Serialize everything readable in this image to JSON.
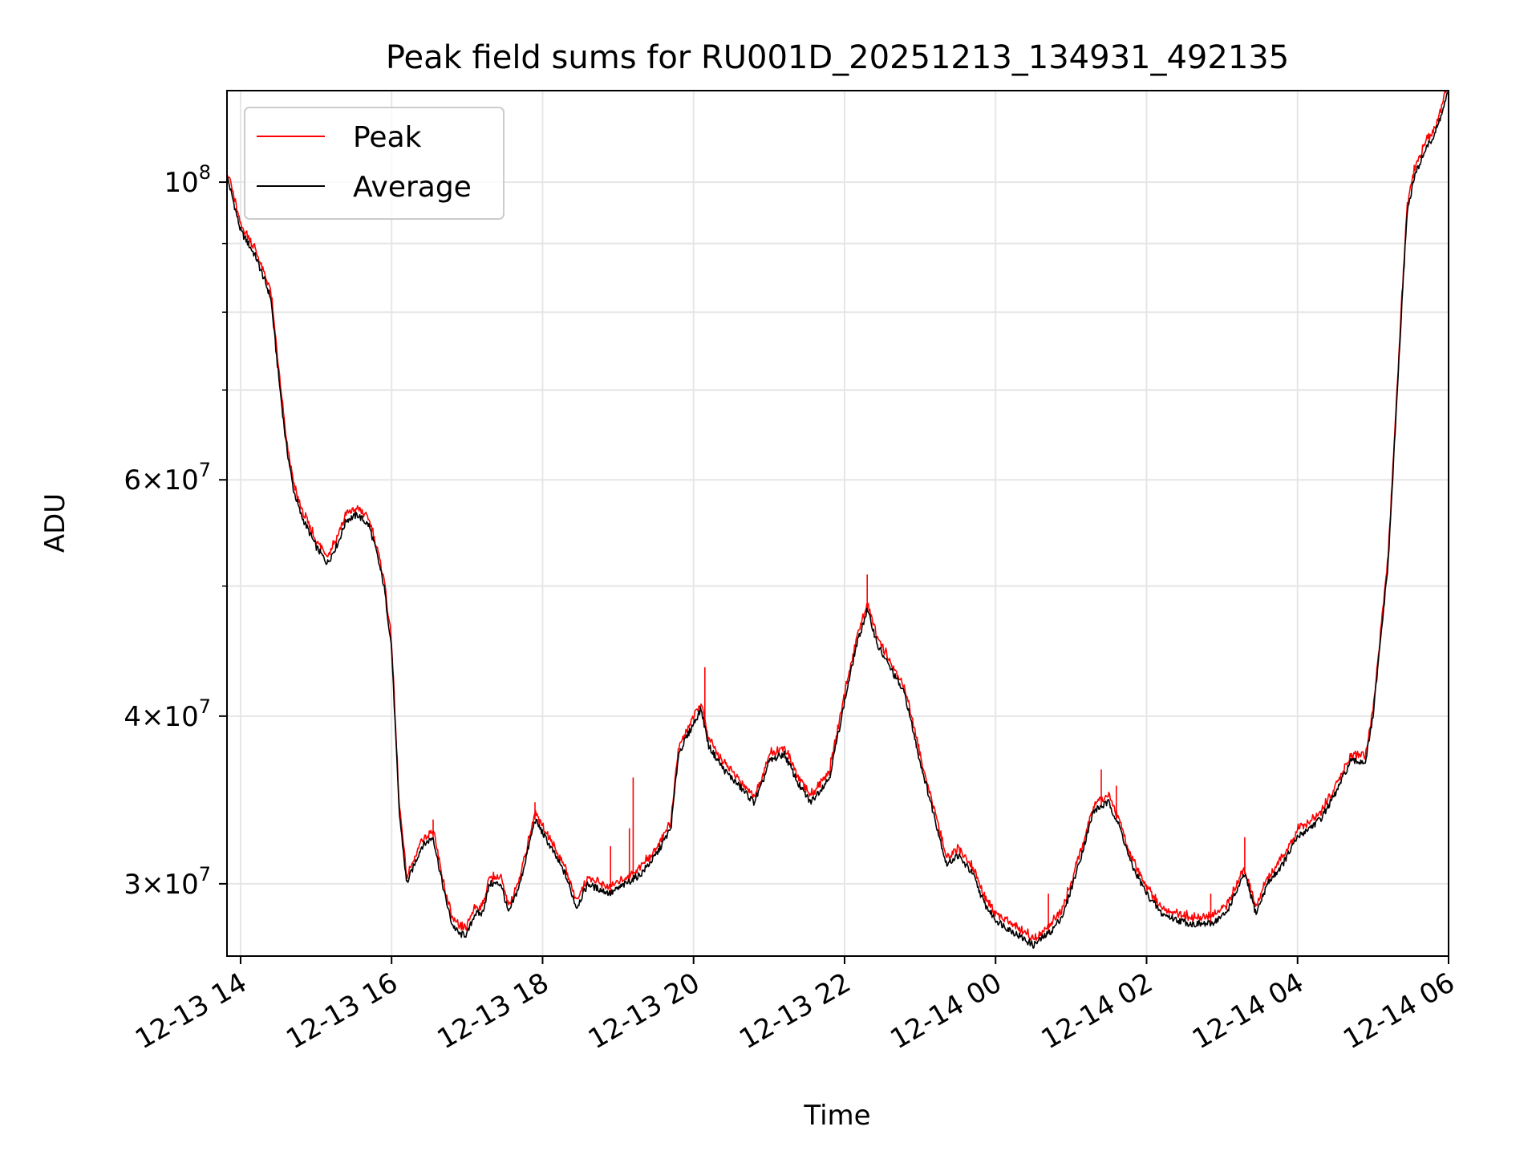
{
  "chart_data": {
    "type": "line",
    "title": "Peak field sums for RU001D_20251213_134931_492135",
    "xlabel": "Time",
    "ylabel": "ADU",
    "yscale": "log",
    "grid": true,
    "legend_location": "upper-left",
    "xlim_hours": [
      13.82,
      30.0
    ],
    "ylim": [
      26500000,
      117000000
    ],
    "x_ticks": [
      {
        "hour": 14,
        "label": "12-13 14"
      },
      {
        "hour": 16,
        "label": "12-13 16"
      },
      {
        "hour": 18,
        "label": "12-13 18"
      },
      {
        "hour": 20,
        "label": "12-13 20"
      },
      {
        "hour": 22,
        "label": "12-13 22"
      },
      {
        "hour": 24,
        "label": "12-14 00"
      },
      {
        "hour": 26,
        "label": "12-14 02"
      },
      {
        "hour": 28,
        "label": "12-14 04"
      },
      {
        "hour": 30,
        "label": "12-14 06"
      }
    ],
    "y_major_ticks": [
      {
        "value": 30000000,
        "mantissa": "3",
        "exponent": "7"
      },
      {
        "value": 40000000,
        "mantissa": "4",
        "exponent": "7"
      },
      {
        "value": 60000000,
        "mantissa": "6",
        "exponent": "7"
      },
      {
        "value": 100000000,
        "mantissa": "",
        "exponent": "8"
      }
    ],
    "y_minor_ticks": [
      50000000,
      70000000,
      80000000,
      90000000
    ],
    "series": [
      {
        "name": "Peak",
        "color": "#ff0000"
      },
      {
        "name": "Average",
        "color": "#000000"
      }
    ],
    "average_points": [
      [
        13.82,
        101000000
      ],
      [
        13.9,
        97000000
      ],
      [
        14.0,
        92000000
      ],
      [
        14.1,
        90000000
      ],
      [
        14.2,
        88000000
      ],
      [
        14.3,
        85000000
      ],
      [
        14.4,
        82000000
      ],
      [
        14.5,
        72000000
      ],
      [
        14.6,
        64000000
      ],
      [
        14.7,
        59000000
      ],
      [
        14.8,
        56500000
      ],
      [
        14.9,
        55000000
      ],
      [
        15.0,
        53500000
      ],
      [
        15.15,
        52000000
      ],
      [
        15.3,
        54000000
      ],
      [
        15.4,
        56000000
      ],
      [
        15.55,
        56500000
      ],
      [
        15.7,
        55500000
      ],
      [
        15.8,
        53000000
      ],
      [
        15.9,
        50000000
      ],
      [
        16.0,
        45000000
      ],
      [
        16.1,
        34000000
      ],
      [
        16.2,
        30000000
      ],
      [
        16.3,
        31000000
      ],
      [
        16.4,
        32000000
      ],
      [
        16.55,
        32500000
      ],
      [
        16.7,
        29500000
      ],
      [
        16.8,
        28000000
      ],
      [
        16.9,
        27500000
      ],
      [
        17.0,
        27500000
      ],
      [
        17.1,
        28500000
      ],
      [
        17.2,
        28500000
      ],
      [
        17.3,
        30000000
      ],
      [
        17.45,
        30000000
      ],
      [
        17.55,
        28500000
      ],
      [
        17.7,
        30000000
      ],
      [
        17.9,
        33500000
      ],
      [
        18.1,
        32000000
      ],
      [
        18.3,
        30500000
      ],
      [
        18.45,
        28800000
      ],
      [
        18.6,
        30000000
      ],
      [
        18.7,
        29800000
      ],
      [
        18.9,
        29500000
      ],
      [
        19.1,
        30000000
      ],
      [
        19.3,
        30500000
      ],
      [
        19.5,
        31500000
      ],
      [
        19.7,
        33000000
      ],
      [
        19.8,
        37500000
      ],
      [
        20.0,
        39500000
      ],
      [
        20.1,
        40500000
      ],
      [
        20.2,
        38000000
      ],
      [
        20.4,
        36500000
      ],
      [
        20.6,
        35500000
      ],
      [
        20.8,
        34500000
      ],
      [
        20.9,
        35500000
      ],
      [
        21.0,
        37000000
      ],
      [
        21.2,
        37500000
      ],
      [
        21.4,
        35500000
      ],
      [
        21.55,
        34500000
      ],
      [
        21.8,
        36000000
      ],
      [
        22.0,
        41000000
      ],
      [
        22.15,
        45000000
      ],
      [
        22.3,
        48000000
      ],
      [
        22.45,
        45000000
      ],
      [
        22.6,
        43500000
      ],
      [
        22.8,
        41500000
      ],
      [
        23.0,
        37000000
      ],
      [
        23.2,
        33500000
      ],
      [
        23.35,
        31000000
      ],
      [
        23.5,
        31500000
      ],
      [
        23.7,
        30500000
      ],
      [
        23.85,
        29000000
      ],
      [
        24.0,
        28200000
      ],
      [
        24.2,
        27700000
      ],
      [
        24.5,
        27000000
      ],
      [
        24.75,
        27700000
      ],
      [
        24.9,
        28500000
      ],
      [
        25.1,
        31000000
      ],
      [
        25.3,
        34000000
      ],
      [
        25.5,
        34500000
      ],
      [
        25.65,
        33000000
      ],
      [
        25.8,
        31000000
      ],
      [
        26.0,
        29500000
      ],
      [
        26.2,
        28500000
      ],
      [
        26.4,
        28200000
      ],
      [
        26.6,
        28000000
      ],
      [
        26.85,
        28000000
      ],
      [
        27.05,
        28500000
      ],
      [
        27.3,
        30500000
      ],
      [
        27.45,
        28500000
      ],
      [
        27.6,
        30000000
      ],
      [
        27.8,
        31000000
      ],
      [
        28.0,
        32500000
      ],
      [
        28.3,
        33500000
      ],
      [
        28.5,
        35000000
      ],
      [
        28.7,
        37000000
      ],
      [
        28.9,
        37000000
      ],
      [
        29.0,
        40000000
      ],
      [
        29.2,
        52000000
      ],
      [
        29.35,
        75000000
      ],
      [
        29.45,
        95000000
      ],
      [
        29.55,
        101000000
      ],
      [
        29.7,
        106000000
      ],
      [
        29.8,
        108000000
      ],
      [
        29.9,
        112000000
      ],
      [
        30.0,
        117000000
      ]
    ],
    "peak_spikes": [
      {
        "hour": 16.55,
        "value": 33500000
      },
      {
        "hour": 17.9,
        "value": 34500000
      },
      {
        "hour": 18.9,
        "value": 32000000
      },
      {
        "hour": 19.15,
        "value": 33000000
      },
      {
        "hour": 19.2,
        "value": 36000000
      },
      {
        "hour": 20.15,
        "value": 43500000
      },
      {
        "hour": 22.3,
        "value": 51000000
      },
      {
        "hour": 24.7,
        "value": 29500000
      },
      {
        "hour": 25.4,
        "value": 36500000
      },
      {
        "hour": 25.6,
        "value": 35500000
      },
      {
        "hour": 26.85,
        "value": 29500000
      },
      {
        "hour": 27.3,
        "value": 32500000
      },
      {
        "hour": 29.05,
        "value": 43500000
      }
    ]
  }
}
